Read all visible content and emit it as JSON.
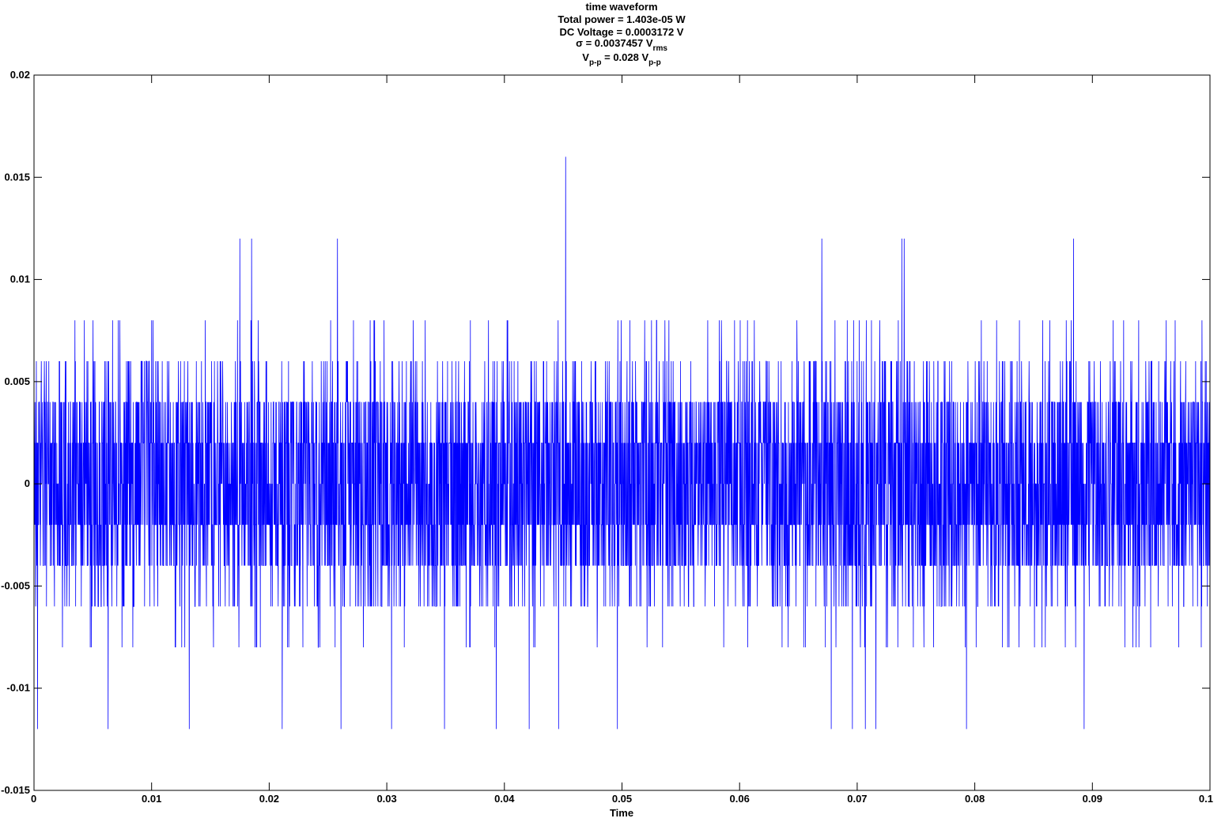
{
  "chart_data": {
    "type": "line",
    "title_lines": [
      "time waveform",
      "Total power = 1.403e-05 W",
      "DC Voltage = 0.0003172 V"
    ],
    "sigma_label": {
      "main": "σ = 0.0037457 V",
      "subscript": "rms"
    },
    "vpp_label": {
      "prefix": "V",
      "prefix_subscript": "p-p",
      "middle": " = 0.028 V",
      "suffix_subscript": "p-p"
    },
    "xlabel": "Time",
    "ylabel": "",
    "xlim": [
      0,
      0.1
    ],
    "ylim": [
      -0.015,
      0.02
    ],
    "x_ticks": [
      0,
      0.01,
      0.02,
      0.03,
      0.04,
      0.05,
      0.06,
      0.07,
      0.08,
      0.09,
      0.1
    ],
    "x_tick_labels": [
      "0",
      "0.01",
      "0.02",
      "0.03",
      "0.04",
      "0.05",
      "0.06",
      "0.07",
      "0.08",
      "0.09",
      "0.1"
    ],
    "y_ticks": [
      0.02,
      0.015,
      0.01,
      0.005,
      0,
      -0.005,
      -0.01,
      -0.015
    ],
    "y_tick_labels": [
      "0.02",
      "0.015",
      "0.01",
      "0.005",
      "0",
      "-0.005",
      "-0.01",
      "-0.015"
    ],
    "grid": false,
    "series": [
      {
        "color": "#0000ff",
        "quantization_step": 0.002,
        "dense_band": [
          -0.004,
          0.004
        ],
        "notable_peaks": [
          {
            "x": 0.0175,
            "y": 0.012
          },
          {
            "x": 0.0185,
            "y": 0.012
          },
          {
            "x": 0.0258,
            "y": 0.012
          },
          {
            "x": 0.0452,
            "y": 0.016
          },
          {
            "x": 0.067,
            "y": 0.012
          },
          {
            "x": 0.0738,
            "y": 0.012
          },
          {
            "x": 0.074,
            "y": 0.012
          },
          {
            "x": 0.0884,
            "y": 0.012
          }
        ],
        "notable_troughs": [
          {
            "x": 0.0003,
            "y": -0.012
          },
          {
            "x": 0.0063,
            "y": -0.012
          },
          {
            "x": 0.0132,
            "y": -0.012
          },
          {
            "x": 0.0211,
            "y": -0.012
          },
          {
            "x": 0.0261,
            "y": -0.012
          },
          {
            "x": 0.0304,
            "y": -0.012
          },
          {
            "x": 0.0349,
            "y": -0.012
          },
          {
            "x": 0.0393,
            "y": -0.012
          },
          {
            "x": 0.0421,
            "y": -0.012
          },
          {
            "x": 0.0446,
            "y": -0.012
          },
          {
            "x": 0.0496,
            "y": -0.012
          },
          {
            "x": 0.0678,
            "y": -0.012
          },
          {
            "x": 0.0696,
            "y": -0.012
          },
          {
            "x": 0.0707,
            "y": -0.012
          },
          {
            "x": 0.0716,
            "y": -0.012
          },
          {
            "x": 0.0793,
            "y": -0.012
          },
          {
            "x": 0.0893,
            "y": -0.012
          }
        ]
      }
    ]
  }
}
